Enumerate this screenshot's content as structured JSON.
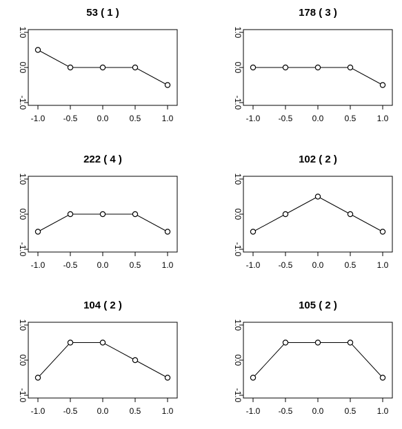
{
  "chart_data": [
    {
      "type": "line",
      "title": "53   ( 1 )",
      "x": [
        -1.0,
        -0.5,
        0.0,
        0.5,
        1.0
      ],
      "values": [
        0.5,
        0.0,
        0.0,
        0.0,
        -0.5
      ],
      "xlim": [
        -1.0,
        1.0
      ],
      "ylim": [
        -1.0,
        1.0
      ],
      "x_ticks": [
        "-1.0",
        "-0.5",
        "0.0",
        "0.5",
        "1.0"
      ],
      "y_ticks": [
        "-1.0",
        "0.0",
        "1.0"
      ],
      "grid": false
    },
    {
      "type": "line",
      "title": "178   ( 3 )",
      "x": [
        -1.0,
        -0.5,
        0.0,
        0.5,
        1.0
      ],
      "values": [
        0.0,
        0.0,
        0.0,
        0.0,
        -0.5
      ],
      "xlim": [
        -1.0,
        1.0
      ],
      "ylim": [
        -1.0,
        1.0
      ],
      "x_ticks": [
        "-1.0",
        "-0.5",
        "0.0",
        "0.5",
        "1.0"
      ],
      "y_ticks": [
        "-1.0",
        "0.0",
        "1.0"
      ],
      "grid": false
    },
    {
      "type": "line",
      "title": "222   ( 4 )",
      "x": [
        -1.0,
        -0.5,
        0.0,
        0.5,
        1.0
      ],
      "values": [
        -0.5,
        0.0,
        0.0,
        0.0,
        -0.5
      ],
      "xlim": [
        -1.0,
        1.0
      ],
      "ylim": [
        -1.0,
        1.0
      ],
      "x_ticks": [
        "-1.0",
        "-0.5",
        "0.0",
        "0.5",
        "1.0"
      ],
      "y_ticks": [
        "-1.0",
        "0.0",
        "1.0"
      ],
      "grid": false
    },
    {
      "type": "line",
      "title": "102   ( 2 )",
      "x": [
        -1.0,
        -0.5,
        0.0,
        0.5,
        1.0
      ],
      "values": [
        -0.5,
        0.0,
        0.5,
        0.0,
        -0.5
      ],
      "xlim": [
        -1.0,
        1.0
      ],
      "ylim": [
        -1.0,
        1.0
      ],
      "x_ticks": [
        "-1.0",
        "-0.5",
        "0.0",
        "0.5",
        "1.0"
      ],
      "y_ticks": [
        "-1.0",
        "0.0",
        "1.0"
      ],
      "grid": false
    },
    {
      "type": "line",
      "title": "104   ( 2 )",
      "x": [
        -1.0,
        -0.5,
        0.0,
        0.5,
        1.0
      ],
      "values": [
        -0.5,
        0.5,
        0.5,
        0.0,
        -0.5
      ],
      "xlim": [
        -1.0,
        1.0
      ],
      "ylim": [
        -1.0,
        1.0
      ],
      "x_ticks": [
        "-1.0",
        "-0.5",
        "0.0",
        "0.5",
        "1.0"
      ],
      "y_ticks": [
        "-1.0",
        "0.0",
        "1.0"
      ],
      "grid": false
    },
    {
      "type": "line",
      "title": "105   ( 2 )",
      "x": [
        -1.0,
        -0.5,
        0.0,
        0.5,
        1.0
      ],
      "values": [
        -0.5,
        0.5,
        0.5,
        0.5,
        -0.5
      ],
      "xlim": [
        -1.0,
        1.0
      ],
      "ylim": [
        -1.0,
        1.0
      ],
      "x_ticks": [
        "-1.0",
        "-0.5",
        "0.0",
        "0.5",
        "1.0"
      ],
      "y_ticks": [
        "-1.0",
        "0.0",
        "1.0"
      ],
      "grid": false
    }
  ]
}
